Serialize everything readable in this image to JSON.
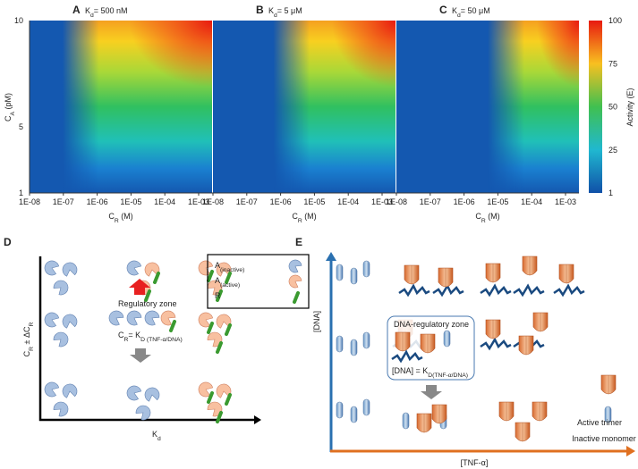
{
  "panels_top": [
    {
      "letter": "A",
      "title": [
        {
          "text": "K"
        },
        {
          "text": "d",
          "sub": true
        },
        {
          "text": "= 500 nM"
        }
      ]
    },
    {
      "letter": "B",
      "title": [
        {
          "text": "K"
        },
        {
          "text": "d",
          "sub": true
        },
        {
          "text": "= 5 μM"
        }
      ]
    },
    {
      "letter": "C",
      "title": [
        {
          "text": "K"
        },
        {
          "text": "d",
          "sub": true
        },
        {
          "text": "= 50 μM"
        }
      ]
    }
  ],
  "heatmap": {
    "y_label": [
      {
        "text": "C"
      },
      {
        "text": "A",
        "sub": true
      },
      {
        "text": " (pM)"
      }
    ],
    "y_ticks": [
      "10",
      "5",
      "1"
    ],
    "x_ticks": [
      "1E-08",
      "1E-07",
      "1E-06",
      "1E-05",
      "1E-04",
      "1E-03"
    ],
    "x_label": [
      {
        "text": "C"
      },
      {
        "text": "R",
        "sub": true
      },
      {
        "text": " (M)"
      }
    ],
    "colorbar_ticks": [
      "100",
      "75",
      "50",
      "25",
      "1"
    ],
    "colorbar_label": "Activity (E)"
  },
  "panel_d": {
    "letter": "D",
    "y_label": [
      {
        "text": "C"
      },
      {
        "text": "R",
        "sub": true
      },
      {
        "text": " ± ΔC"
      },
      {
        "text": "R",
        "sub": true
      }
    ],
    "x_label": [
      {
        "text": "K"
      },
      {
        "text": "d",
        "sub": true
      }
    ],
    "legend": [
      [
        {
          "text": "A"
        },
        {
          "text": "(inactive)",
          "sub": true
        }
      ],
      [
        {
          "text": "A"
        },
        {
          "text": "(active)",
          "sub": true
        }
      ],
      [
        {
          "text": "R"
        }
      ]
    ],
    "zone": "Regulatory zone",
    "equation": [
      {
        "text": "C"
      },
      {
        "text": "R",
        "sub": true
      },
      {
        "text": "= K"
      },
      {
        "text": "D (TNF-α/DNA)",
        "sub": true
      }
    ]
  },
  "panel_e": {
    "letter": "E",
    "y_label": "[DNA]",
    "x_label": "[TNF-α]",
    "zone": "DNA-regulatory zone",
    "equation": [
      {
        "text": "[DNA] = K"
      },
      {
        "text": "D(TNF-α/DNA)",
        "sub": true
      }
    ],
    "legend": [
      "Active trimer",
      "Inactive monomer"
    ]
  }
}
